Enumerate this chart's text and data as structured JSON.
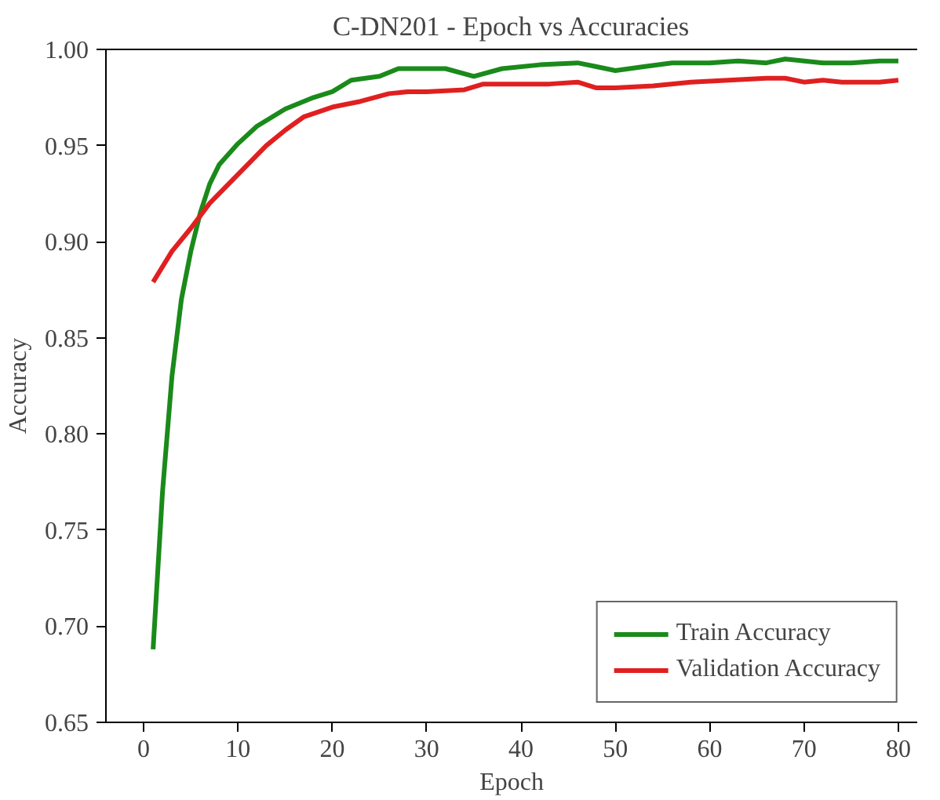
{
  "chart_data": {
    "type": "line",
    "title": "C-DN201 - Epoch vs Accuracies",
    "xlabel": "Epoch",
    "ylabel": "Accuracy",
    "xlim": [
      -4,
      82
    ],
    "xticks": [
      0,
      10,
      20,
      30,
      40,
      50,
      60,
      70,
      80
    ],
    "ylim": [
      0.65,
      1.0
    ],
    "yticks": [
      0.65,
      {
        "value": 0.7,
        "label": "0.70"
      },
      0.75,
      {
        "value": 0.8,
        "label": "0.80"
      },
      0.85,
      {
        "value": 0.9,
        "label": "0.90"
      },
      0.95,
      {
        "value": 1.0,
        "label": "1.00"
      }
    ],
    "grid": false,
    "legend": "bottom right",
    "line_style": "solid",
    "series": [
      {
        "name": "Train Accuracy",
        "color": "#1a8a1a",
        "x": [
          1,
          2,
          3,
          4,
          5,
          6,
          7,
          8,
          10,
          12,
          15,
          18,
          20,
          22,
          25,
          27,
          30,
          32,
          35,
          38,
          42,
          46,
          48,
          50,
          53,
          56,
          60,
          63,
          66,
          68,
          70,
          72,
          75,
          78,
          80
        ],
        "values": [
          0.688,
          0.77,
          0.83,
          0.87,
          0.895,
          0.915,
          0.93,
          0.94,
          0.951,
          0.96,
          0.969,
          0.975,
          0.978,
          0.984,
          0.986,
          0.99,
          0.99,
          0.99,
          0.986,
          0.99,
          0.992,
          0.993,
          0.991,
          0.989,
          0.991,
          0.993,
          0.993,
          0.994,
          0.993,
          0.995,
          0.994,
          0.993,
          0.993,
          0.994,
          0.994
        ]
      },
      {
        "name": "Validation Accuracy",
        "color": "#e02020",
        "x": [
          1,
          3,
          5,
          7,
          10,
          13,
          15,
          17,
          20,
          23,
          26,
          28,
          30,
          34,
          36,
          40,
          43,
          46,
          48,
          50,
          54,
          58,
          62,
          66,
          68,
          70,
          72,
          74,
          78,
          80
        ],
        "values": [
          0.879,
          0.895,
          0.907,
          0.92,
          0.935,
          0.95,
          0.958,
          0.965,
          0.97,
          0.973,
          0.977,
          0.978,
          0.978,
          0.979,
          0.982,
          0.982,
          0.982,
          0.983,
          0.98,
          0.98,
          0.981,
          0.983,
          0.984,
          0.985,
          0.985,
          0.983,
          0.984,
          0.983,
          0.983,
          0.984
        ]
      }
    ]
  }
}
